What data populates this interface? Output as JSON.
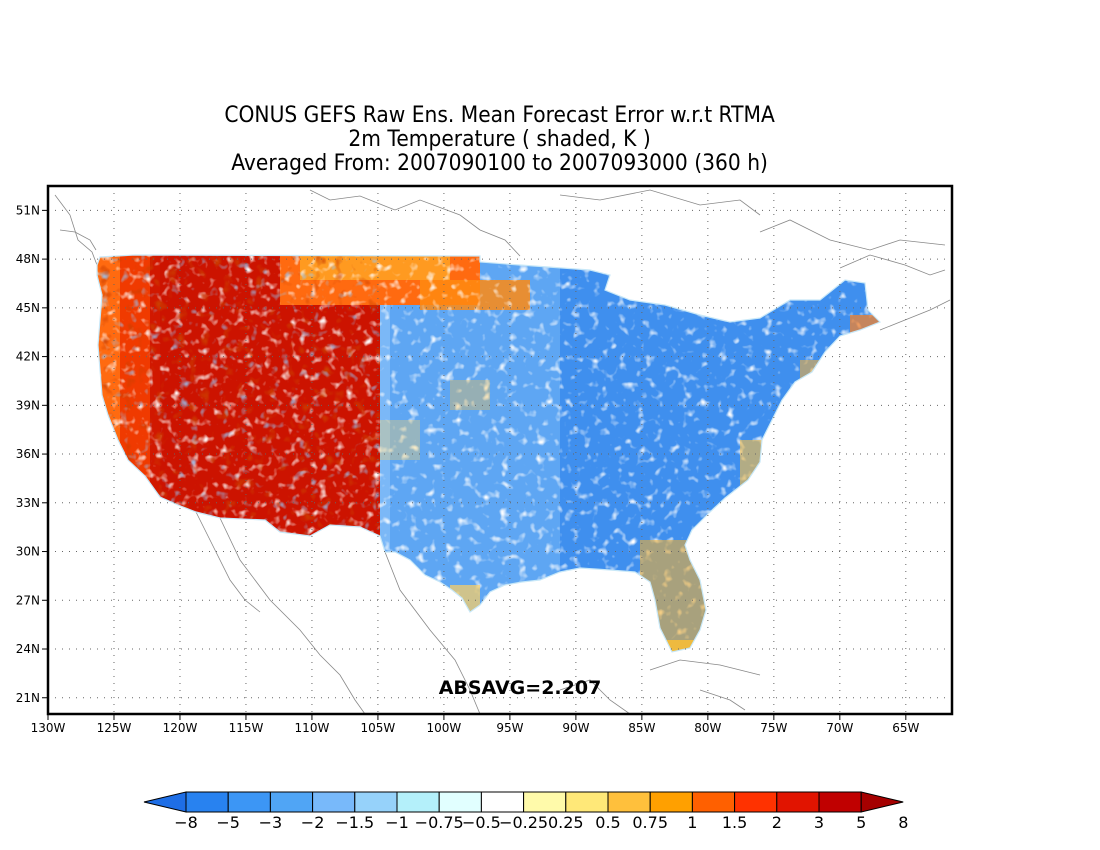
{
  "title": {
    "line1": "CONUS GEFS Raw Ens. Mean Forecast Error w.r.t RTMA",
    "line2": "2m Temperature ( shaded, K )",
    "line3": "Averaged From: 2007090100 to 2007093000 (360 h)"
  },
  "map": {
    "lat_ticks": [
      "51N",
      "48N",
      "45N",
      "42N",
      "39N",
      "36N",
      "33N",
      "30N",
      "27N",
      "24N",
      "21N"
    ],
    "lat_values": [
      51,
      48,
      45,
      42,
      39,
      36,
      33,
      30,
      27,
      24,
      21
    ],
    "lon_ticks": [
      "130W",
      "125W",
      "120W",
      "115W",
      "110W",
      "105W",
      "100W",
      "95W",
      "90W",
      "85W",
      "80W",
      "75W",
      "70W",
      "65W"
    ],
    "lon_values": [
      -130,
      -125,
      -120,
      -115,
      -110,
      -105,
      -100,
      -95,
      -90,
      -85,
      -80,
      -75,
      -70,
      -65
    ],
    "extent": {
      "lon_min": -130,
      "lon_max": -61.5,
      "lat_min": 20,
      "lat_max": 52.5
    },
    "absavg_label": "ABSAVG=2.207",
    "regions": [
      {
        "name": "west",
        "error": "strong warm bias (+2 to +8 K)"
      },
      {
        "name": "central-east",
        "error": "cold bias (-0.5 to -3 K)"
      },
      {
        "name": "gulf-florida-coast",
        "error": "mixed warm patches"
      }
    ]
  },
  "colorbar": {
    "labels": [
      "-8",
      "-5",
      "-3",
      "-2",
      "-1.5",
      "-1",
      "-0.75",
      "-0.5",
      "-0.25",
      "0.25",
      "0.5",
      "0.75",
      "1",
      "1.5",
      "2",
      "3",
      "5",
      "8"
    ],
    "colors": [
      "#1e6ee6",
      "#2882f0",
      "#3c96f5",
      "#50a5f5",
      "#78b9fa",
      "#96d2fa",
      "#b4f0fa",
      "#e1ffff",
      "#ffffff",
      "#fffaaa",
      "#ffe878",
      "#ffc03c",
      "#ffa000",
      "#ff6000",
      "#ff3200",
      "#e11400",
      "#c00000",
      "#a50000"
    ]
  }
}
